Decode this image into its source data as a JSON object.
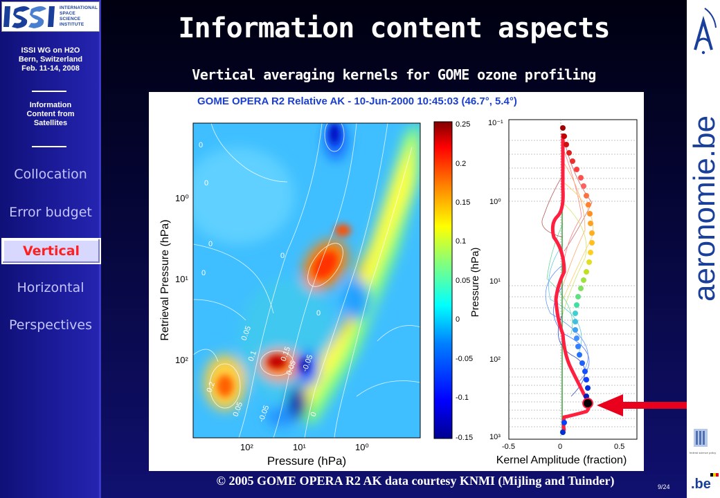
{
  "sidebar": {
    "logo_text": [
      "INTERNATIONAL",
      "SPACE",
      "SCIENCE",
      "INSTITUTE"
    ],
    "meeting": [
      "ISSI WG on H2O",
      "Bern, Switzerland",
      "Feb. 11-14, 2008"
    ],
    "topic": [
      "Information",
      "Content from",
      "Satellites"
    ],
    "nav": [
      {
        "label": "Collocation",
        "active": false
      },
      {
        "label": "Error budget",
        "active": false
      },
      {
        "label": "Vertical",
        "active": true
      },
      {
        "label": "Horizontal",
        "active": false
      },
      {
        "label": "Perspectives",
        "active": false
      }
    ]
  },
  "slide": {
    "title": "Information content aspects",
    "subtitle": "Vertical averaging kernels for GOME ozone profiling",
    "credit": "© 2005 GOME OPERA R2 AK data courtesy KNMI (Mijling and Tuinder)",
    "page": "9/24"
  },
  "figure": {
    "header": "GOME OPERA R2 Relative AK - 10-Jun-2000 10:45:03 (46.7°, 5.4°)",
    "left_panel": {
      "ylabel": "Retrieval Pressure (hPa)",
      "xlabel": "Pressure (hPa)",
      "yticks": [
        "10⁰",
        "10¹",
        "10²"
      ],
      "xticks": [
        "10²",
        "10¹",
        "10⁰"
      ],
      "contour_labels": [
        "0",
        "0",
        "0",
        "0",
        "0",
        "0",
        "0.05",
        "0.1",
        "0.15",
        "-0.05",
        "0.05",
        "0",
        "0.2",
        "0.05",
        "-0.05"
      ]
    },
    "colorbar": {
      "ticks": [
        "0.25",
        "0.2",
        "0.15",
        "0.1",
        "0.05",
        "0",
        "-0.05",
        "-0.1",
        "-0.15"
      ],
      "stops": [
        "#00008f",
        "#0000ff",
        "#0080ff",
        "#00ffff",
        "#80ff80",
        "#ffff00",
        "#ff8000",
        "#ff0000",
        "#800000"
      ]
    },
    "right_panel": {
      "ylabel": "Pressure (hPa)",
      "xlabel": "Kernel Amplitude (fraction)",
      "yticks": [
        "10⁻¹",
        "10⁰",
        "10¹",
        "10²",
        "10³"
      ],
      "xticks": [
        "-0.5",
        "0",
        "0.5"
      ]
    }
  },
  "branding": {
    "right_logo": "aeronomie.be",
    "be_logo": ".be",
    "federal": "federal science policy"
  },
  "colors": {
    "accent": "#ff2020",
    "nav_text": "#c4c4ff",
    "title": "#ffffff"
  }
}
